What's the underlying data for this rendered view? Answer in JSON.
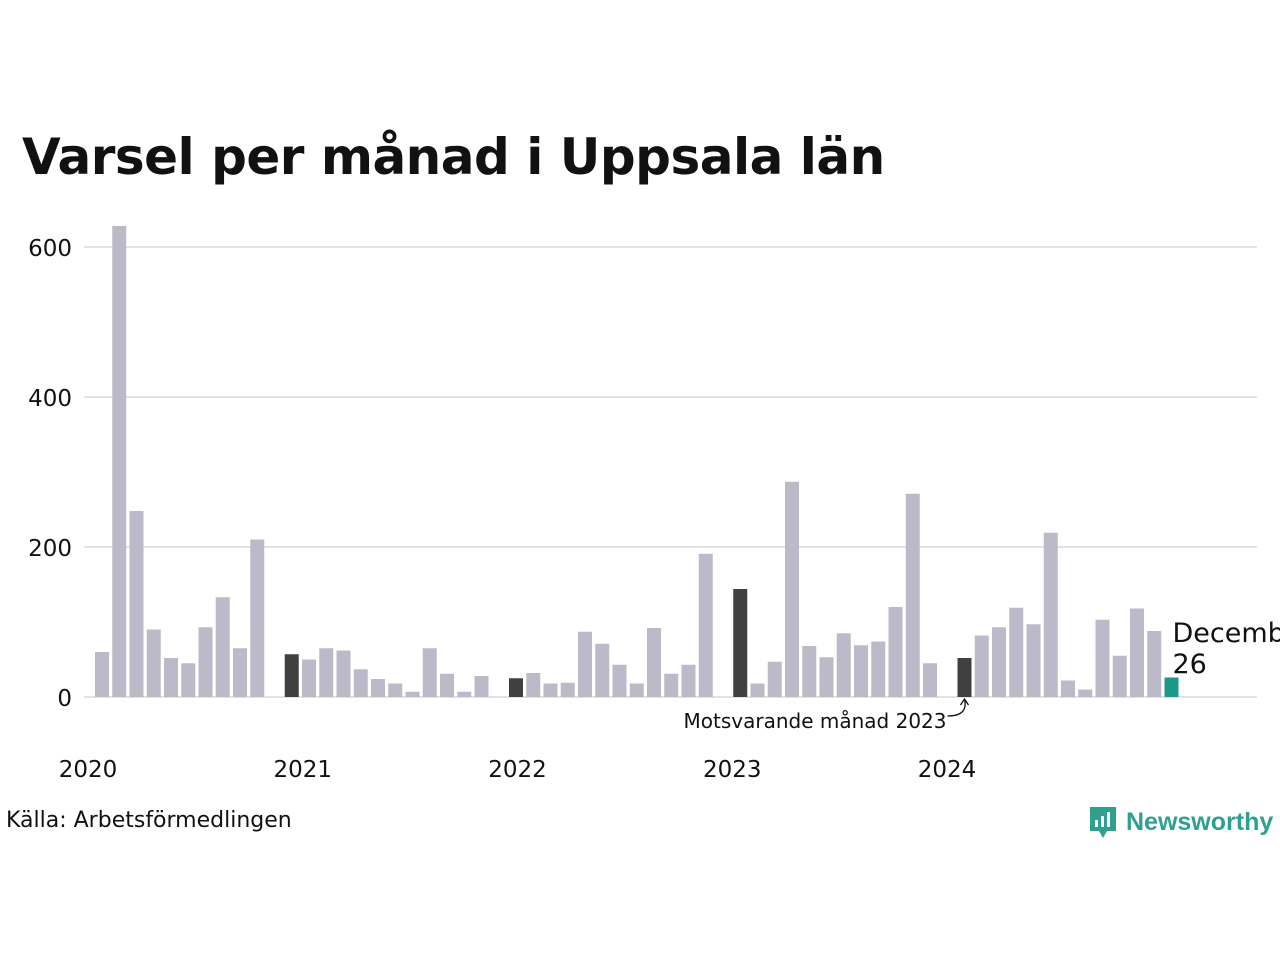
{
  "chart_data": {
    "type": "bar",
    "title": "Varsel per månad i Uppsala län",
    "ylim": [
      0,
      640
    ],
    "y_ticks": [
      0,
      200,
      400,
      600
    ],
    "x_tick_labels": [
      "2020",
      "2021",
      "2022",
      "2023",
      "2024"
    ],
    "grid": "horizontal",
    "start": "2020-01",
    "values": [
      60,
      628,
      248,
      90,
      52,
      45,
      93,
      133,
      65,
      210,
      0,
      57,
      50,
      65,
      62,
      37,
      24,
      18,
      7,
      65,
      31,
      7,
      28,
      0,
      25,
      32,
      18,
      19,
      87,
      71,
      43,
      18,
      92,
      31,
      43,
      191,
      0,
      144,
      18,
      47,
      287,
      68,
      53,
      85,
      69,
      74,
      120,
      271,
      45,
      0,
      52,
      82,
      93,
      119,
      97,
      219,
      22,
      10,
      103,
      55,
      118,
      88,
      26
    ],
    "highlighted": [
      {
        "index": 11,
        "color": "#404040"
      },
      {
        "index": 24,
        "color": "#404040"
      },
      {
        "index": 37,
        "color": "#404040"
      },
      {
        "index": 50,
        "color": "#404040"
      },
      {
        "index": 62,
        "color": "#1a9988"
      }
    ],
    "colors": {
      "default": "#bcbac9",
      "previous_year": "#404040",
      "current": "#1a9988",
      "grid": "#e2e2e6"
    },
    "annotations": {
      "current_label": "December",
      "current_value": "26",
      "previous_label": "Motsvarande månad 2023"
    }
  },
  "footer": {
    "source": "Källa: Arbetsförmedlingen",
    "brand": "Newsworthy",
    "brand_icon": "newsworthy-logo-icon"
  }
}
